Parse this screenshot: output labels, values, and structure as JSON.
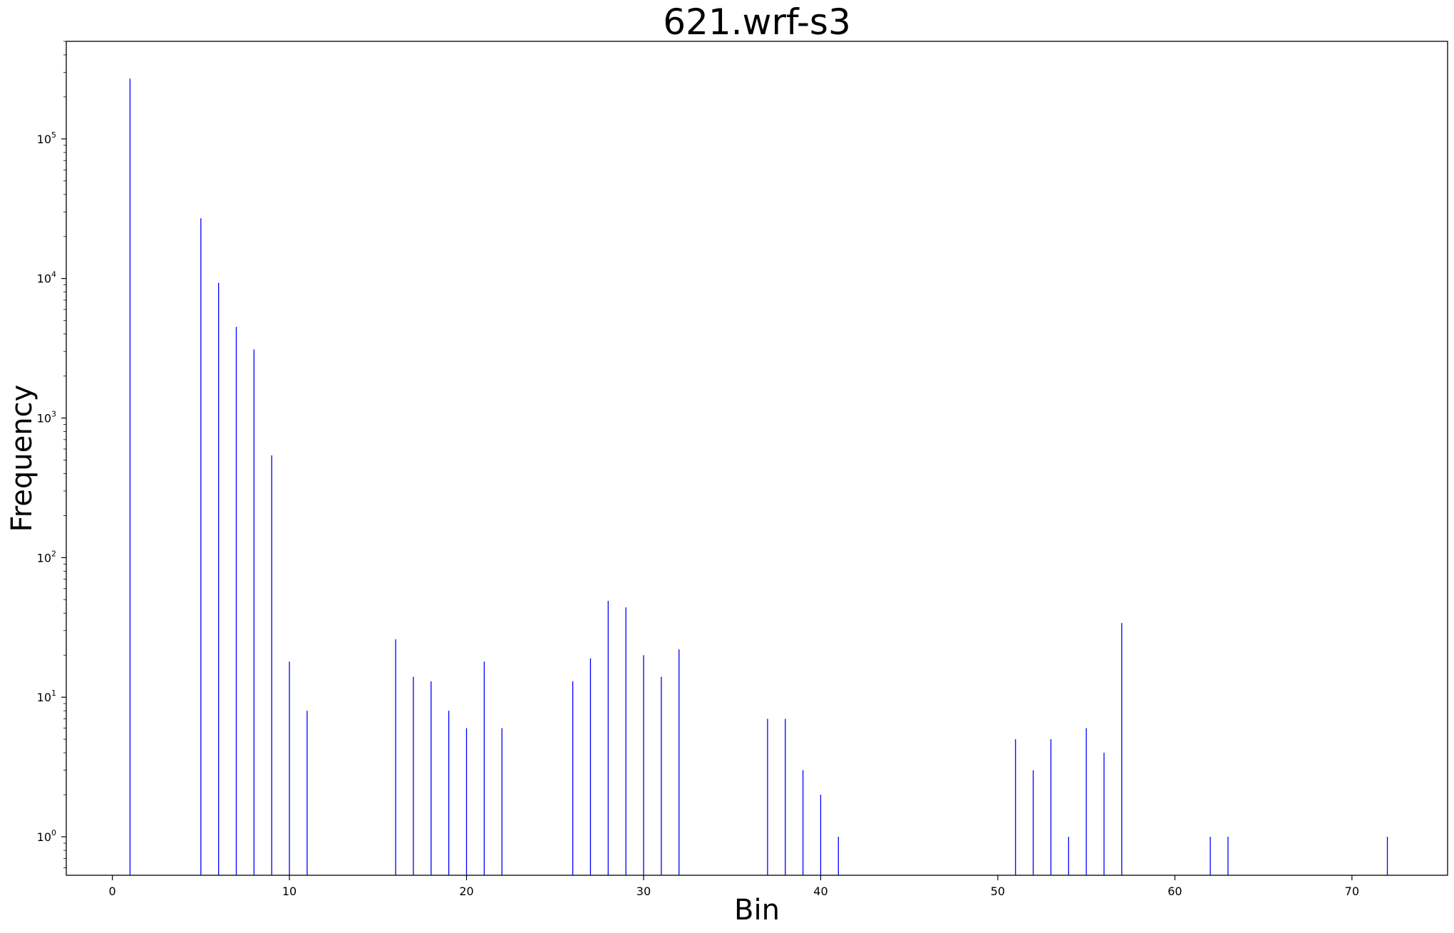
{
  "chart_data": {
    "type": "bar",
    "title": "621.wrf-s3",
    "xlabel": "Bin",
    "ylabel": "Frequency",
    "xlim": [
      -2.6,
      75.4
    ],
    "ylim": [
      0.53,
      500000
    ],
    "yscale": "log",
    "grid": false,
    "bar_color": "#0000ff",
    "x_ticks": [
      0,
      10,
      20,
      30,
      40,
      50,
      60,
      70
    ],
    "x_tick_labels": [
      "0",
      "10",
      "20",
      "30",
      "40",
      "50",
      "60",
      "70"
    ],
    "y_ticks": [
      1,
      10,
      100,
      1000,
      10000,
      100000
    ],
    "y_tick_labels": [
      {
        "base": "10",
        "exp": "0"
      },
      {
        "base": "10",
        "exp": "1"
      },
      {
        "base": "10",
        "exp": "2"
      },
      {
        "base": "10",
        "exp": "3"
      },
      {
        "base": "10",
        "exp": "4"
      },
      {
        "base": "10",
        "exp": "5"
      }
    ],
    "x": [
      1,
      5,
      6,
      7,
      8,
      9,
      10,
      11,
      16,
      17,
      18,
      19,
      20,
      21,
      22,
      26,
      27,
      28,
      29,
      30,
      31,
      32,
      37,
      38,
      39,
      40,
      41,
      51,
      52,
      53,
      54,
      55,
      56,
      57,
      62,
      63,
      72
    ],
    "values": [
      270000,
      27000,
      9300,
      4500,
      3100,
      540,
      18,
      8,
      26,
      14,
      13,
      8,
      6,
      18,
      6,
      13,
      19,
      49,
      44,
      20,
      14,
      22,
      7,
      7,
      3,
      2,
      1,
      5,
      3,
      5,
      1,
      6,
      4,
      34,
      1,
      1,
      1
    ]
  }
}
